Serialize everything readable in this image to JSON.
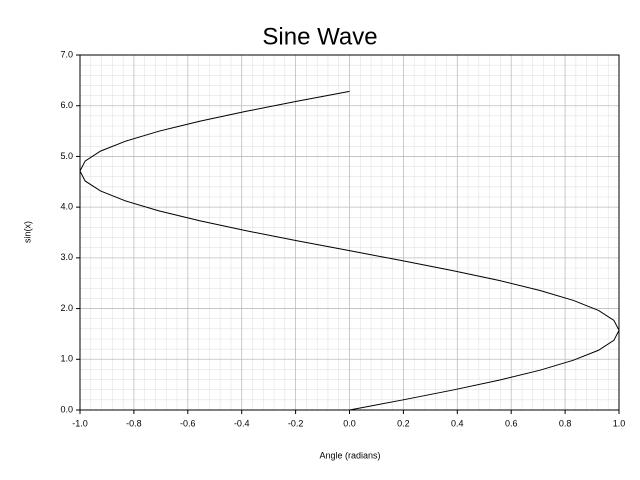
{
  "chart_data": {
    "type": "line",
    "title": "Sine Wave",
    "xlabel": "Angle (radians)",
    "ylabel": "sin(x)",
    "x": [
      0,
      0.195,
      0.383,
      0.556,
      0.707,
      0.831,
      0.924,
      0.981,
      1.0,
      0.981,
      0.924,
      0.831,
      0.707,
      0.556,
      0.383,
      0.195,
      0,
      -0.195,
      -0.383,
      -0.556,
      -0.707,
      -0.831,
      -0.924,
      -0.981,
      -1.0,
      -0.981,
      -0.924,
      -0.831,
      -0.707,
      -0.556,
      -0.383,
      -0.195,
      0
    ],
    "values": [
      0,
      0.196,
      0.393,
      0.589,
      0.785,
      0.982,
      1.178,
      1.374,
      1.571,
      1.767,
      1.963,
      2.16,
      2.356,
      2.553,
      2.749,
      2.945,
      3.142,
      3.338,
      3.534,
      3.731,
      3.927,
      4.123,
      4.32,
      4.516,
      4.712,
      4.909,
      5.105,
      5.301,
      5.498,
      5.694,
      5.89,
      6.087,
      6.283
    ],
    "color": "#000000",
    "xlim": [
      -1,
      1
    ],
    "xticks": [
      {
        "value": -1,
        "label": "-1.0"
      },
      {
        "value": -0.8,
        "label": "-0.8"
      },
      {
        "value": -0.6,
        "label": "-0.6"
      },
      {
        "value": -0.4,
        "label": "-0.4"
      },
      {
        "value": -0.2,
        "label": "-0.2"
      },
      {
        "value": 0,
        "label": "0.0"
      },
      {
        "value": 0.2,
        "label": "0.2"
      },
      {
        "value": 0.4,
        "label": "0.4"
      },
      {
        "value": 0.6,
        "label": "0.6"
      },
      {
        "value": 0.8,
        "label": "0.8"
      },
      {
        "value": 1,
        "label": "1.0"
      }
    ],
    "ylim": [
      0,
      7
    ],
    "yticks": [
      {
        "value": 0,
        "label": "0.0"
      },
      {
        "value": 1,
        "label": "1.0"
      },
      {
        "value": 2,
        "label": "2.0"
      },
      {
        "value": 3,
        "label": "3.0"
      },
      {
        "value": 4,
        "label": "4.0"
      },
      {
        "value": 5,
        "label": "5.0"
      },
      {
        "value": 6,
        "label": "6.0"
      },
      {
        "value": 7,
        "label": "7.0"
      }
    ],
    "grid": true,
    "minor_grid": 5
  }
}
